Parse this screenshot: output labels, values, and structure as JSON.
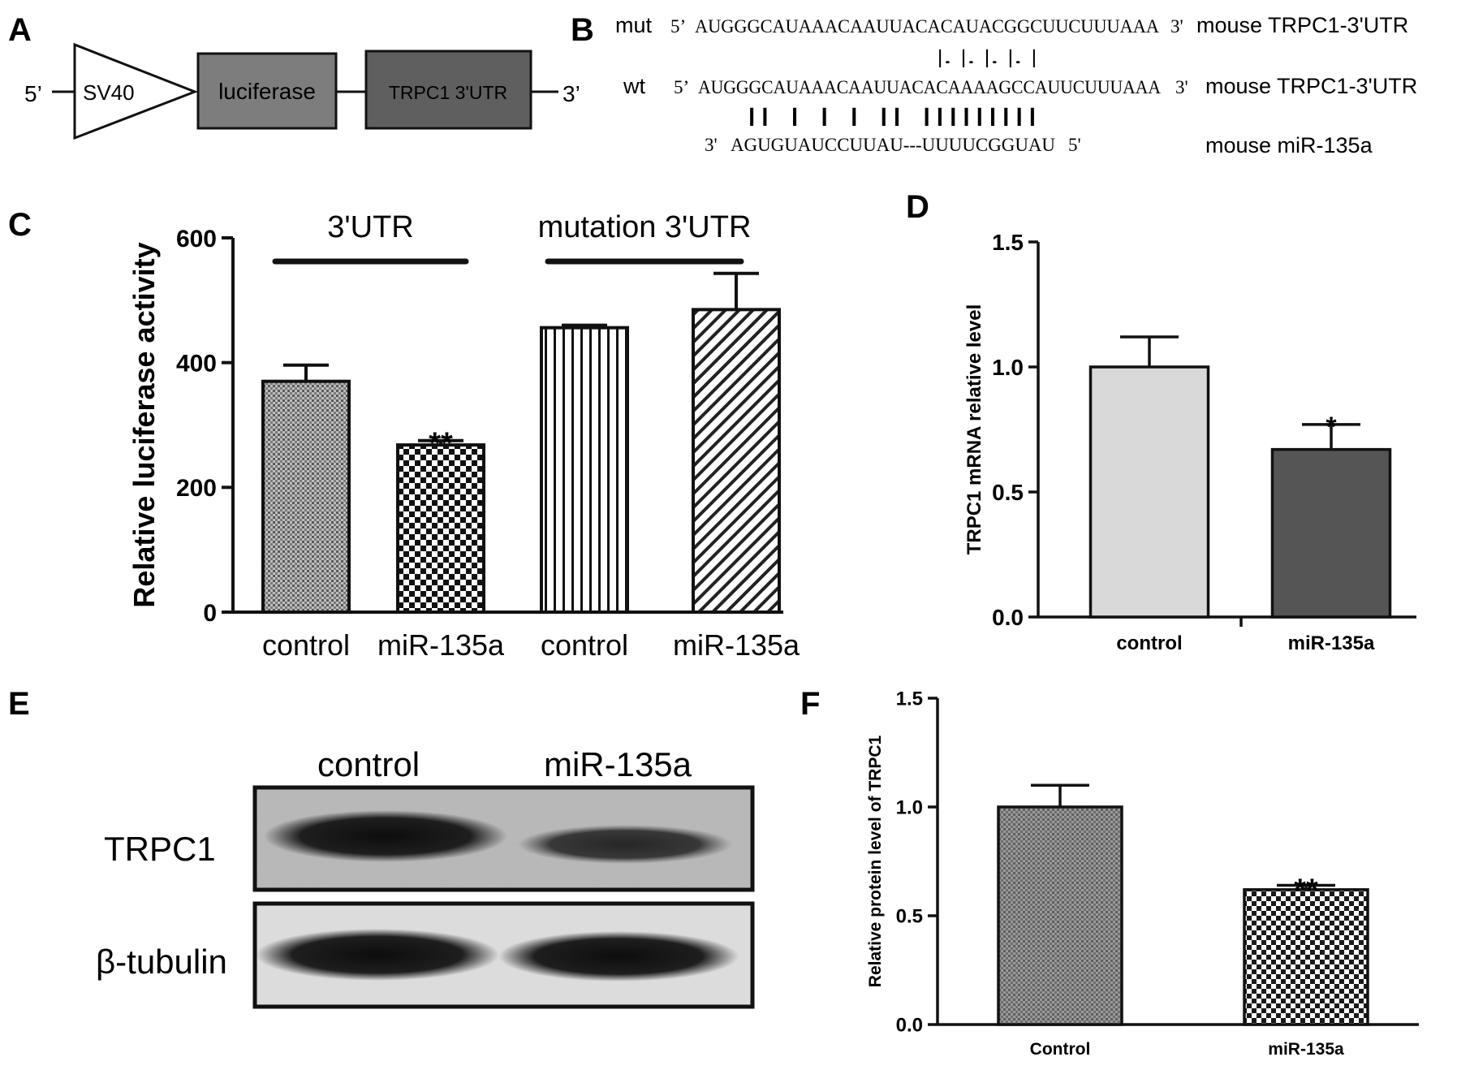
{
  "panels": {
    "a": {
      "letter": "A",
      "five_prime": "5’",
      "three_prime": "3’",
      "promoter": "SV40",
      "reporter": "luciferase",
      "utr": "TRPC1 3'UTR"
    },
    "b": {
      "letter": "B",
      "rows": [
        {
          "tag": "mut",
          "start": "5’",
          "seq": "AUGGGCAUAAACAAUUACACAUACGGCUUCUUUAAA",
          "end": "3'",
          "label": "mouse TRPC1-3'UTR"
        },
        {
          "tag": "wt",
          "start": "5’",
          "seq": "AUGGGCAUAAACAAUUACACAAAAGCCAUUCUUUAAA",
          "end": "3'",
          "label": "mouse TRPC1-3'UTR"
        },
        {
          "tag": "",
          "start": "3'",
          "seq": "AGUGUAUCCUUAU---UUUUCGGUAU",
          "end": "5'",
          "label": "mouse miR-135a"
        }
      ],
      "mut_pairing": "|. |. |. |. |",
      "wt_pairing": "||  |  |   |  ||      |||||||||"
    },
    "c": {
      "letter": "C",
      "stars": "**",
      "brackets": [
        "3'UTR",
        "mutation 3'UTR"
      ]
    },
    "d": {
      "letter": "D",
      "stars": "*"
    },
    "e": {
      "letter": "E",
      "lanes": [
        "control",
        "miR-135a"
      ],
      "rows": [
        "TRPC1",
        "β-tubulin"
      ]
    },
    "f": {
      "letter": "F",
      "stars": "**"
    }
  },
  "chart_data": [
    {
      "id": "C",
      "type": "bar",
      "title": "",
      "xlabel": "",
      "ylabel": "Relative luciferase activity",
      "ylim": [
        0,
        600
      ],
      "yticks": [
        0,
        200,
        400,
        600
      ],
      "categories": [
        "control",
        "miR-135a",
        "control",
        "miR-135a"
      ],
      "values": [
        370,
        268,
        456,
        485
      ],
      "errors": [
        26,
        7,
        4,
        58
      ],
      "groups": [
        "3'UTR",
        "mutation 3'UTR"
      ],
      "significance": [
        "",
        "**",
        "",
        ""
      ]
    },
    {
      "id": "D",
      "type": "bar",
      "title": "",
      "xlabel": "",
      "ylabel": "TRPC1 mRNA relative level",
      "ylim": [
        0,
        1.5
      ],
      "yticks": [
        "0.0",
        "0.5",
        "1.0",
        "1.5"
      ],
      "categories": [
        "control",
        "miR-135a"
      ],
      "values": [
        1.0,
        0.67
      ],
      "errors": [
        0.12,
        0.1
      ],
      "colors": [
        "#d9d9d9",
        "#555555"
      ],
      "significance": [
        "",
        "*"
      ]
    },
    {
      "id": "F",
      "type": "bar",
      "title": "",
      "xlabel": "",
      "ylabel": "Relative protein level of TRPC1",
      "ylim": [
        0,
        1.5
      ],
      "yticks": [
        "0.0",
        "0.5",
        "1.0",
        "1.5"
      ],
      "categories": [
        "Control",
        "miR-135a"
      ],
      "values": [
        1.0,
        0.62
      ],
      "errors": [
        0.1,
        0.02
      ],
      "significance": [
        "",
        "**"
      ]
    }
  ]
}
